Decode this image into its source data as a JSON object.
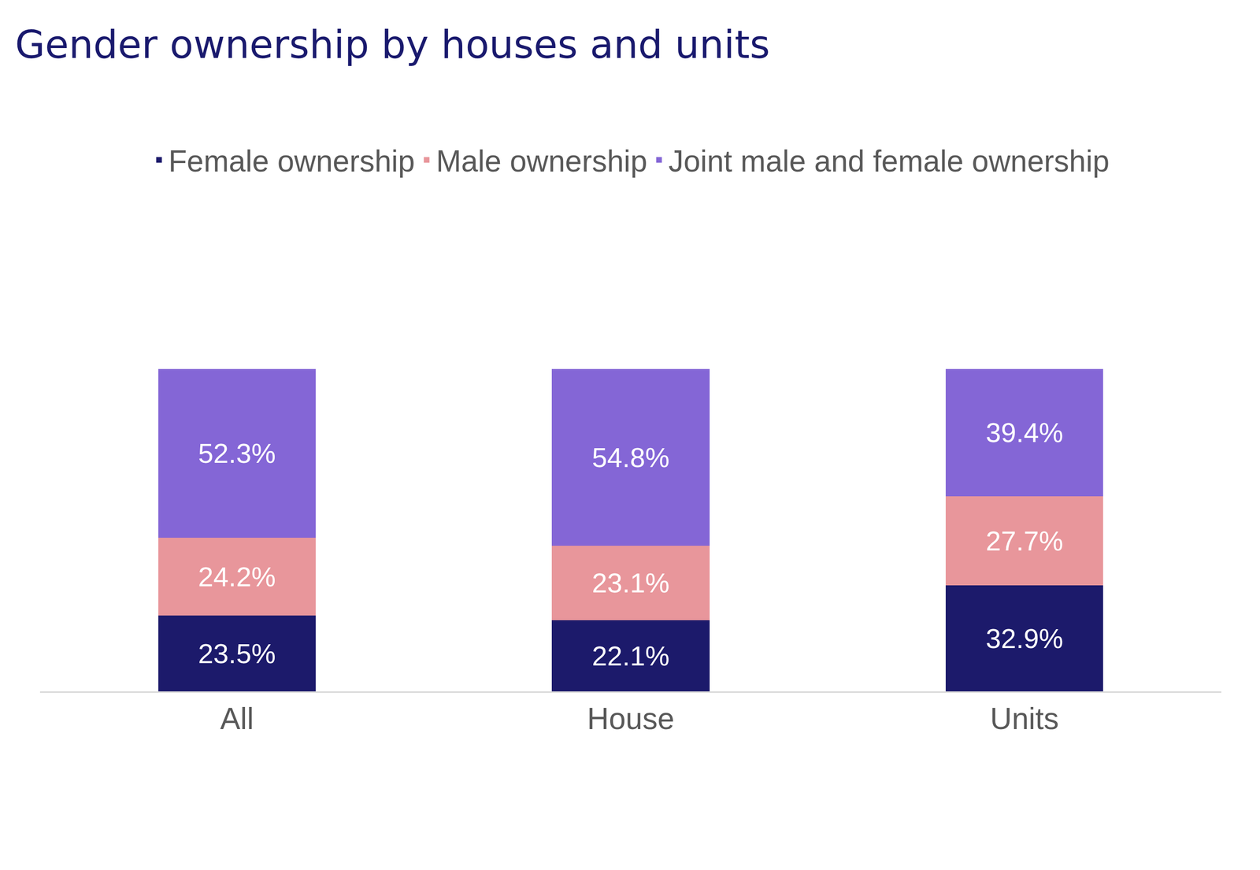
{
  "chart_data": {
    "type": "bar",
    "title": "Gender ownership by houses and units",
    "categories": [
      "All",
      "House",
      "Units"
    ],
    "stacked": true,
    "data_labels": true,
    "tick_labels": "x",
    "grid": false,
    "legend": "top",
    "ylim": [
      0,
      100
    ],
    "series": [
      {
        "name": "Female ownership",
        "color": "#1c1a6b",
        "values": [
          23.5,
          22.1,
          32.9
        ],
        "value_labels": [
          "23.5%",
          "22.1%",
          "32.9%"
        ]
      },
      {
        "name": "Male ownership",
        "color": "#e8969b",
        "values": [
          24.2,
          23.1,
          27.7
        ],
        "value_labels": [
          "24.2%",
          "23.1%",
          "27.7%"
        ]
      },
      {
        "name": "Joint male and female ownership",
        "color": "#8466d6",
        "values": [
          52.3,
          54.8,
          39.4
        ],
        "value_labels": [
          "52.3%",
          "54.8%",
          "39.4%"
        ]
      }
    ]
  }
}
